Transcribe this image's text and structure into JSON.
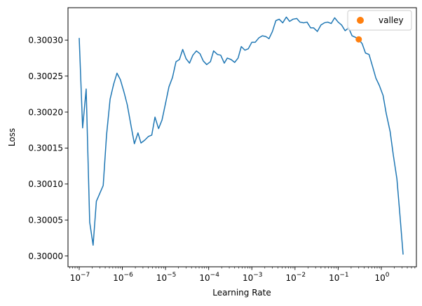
{
  "chart_data": {
    "type": "line",
    "title": "",
    "xlabel": "Learning Rate",
    "ylabel": "Loss",
    "xscale": "log",
    "xlim": [
      5.5e-08,
      6.5
    ],
    "ylim": [
      0.299985,
      0.300345
    ],
    "grid": false,
    "legend": {
      "placement": "top-right",
      "entries": [
        {
          "name": "valley",
          "color": "#ff7f0e",
          "marker": "circle"
        }
      ]
    },
    "x_ticks": [
      {
        "value": 1e-07,
        "label": "10^-7"
      },
      {
        "value": 1e-06,
        "label": "10^-6"
      },
      {
        "value": 1e-05,
        "label": "10^-5"
      },
      {
        "value": 0.0001,
        "label": "10^-4"
      },
      {
        "value": 0.001,
        "label": "10^-3"
      },
      {
        "value": 0.01,
        "label": "10^-2"
      },
      {
        "value": 0.1,
        "label": "10^-1"
      },
      {
        "value": 1,
        "label": "10^0"
      }
    ],
    "y_ticks": [
      {
        "value": 0.3,
        "label": "0.30000"
      },
      {
        "value": 0.30005,
        "label": "0.30005"
      },
      {
        "value": 0.3001,
        "label": "0.30010"
      },
      {
        "value": 0.30015,
        "label": "0.30015"
      },
      {
        "value": 0.3002,
        "label": "0.30020"
      },
      {
        "value": 0.30025,
        "label": "0.30025"
      },
      {
        "value": 0.3003,
        "label": "0.30030"
      }
    ],
    "series": [
      {
        "name": "",
        "color": "#1f77b4",
        "points": [
          [
            1e-07,
            0.300303
          ],
          [
            1.2e-07,
            0.300178
          ],
          [
            1.45e-07,
            0.300232
          ],
          [
            1.75e-07,
            0.300047
          ],
          [
            2.1e-07,
            0.300015
          ],
          [
            2.5e-07,
            0.300076
          ],
          [
            3e-07,
            0.300087
          ],
          [
            3.6e-07,
            0.300098
          ],
          [
            4.3e-07,
            0.300168
          ],
          [
            5.2e-07,
            0.300218
          ],
          [
            6.3e-07,
            0.300239
          ],
          [
            7.5e-07,
            0.300254
          ],
          [
            9e-07,
            0.300245
          ],
          [
            1.1e-06,
            0.300227
          ],
          [
            1.3e-06,
            0.30021
          ],
          [
            1.6e-06,
            0.30018
          ],
          [
            1.9e-06,
            0.300156
          ],
          [
            2.3e-06,
            0.300171
          ],
          [
            2.7e-06,
            0.300157
          ],
          [
            3.3e-06,
            0.300161
          ],
          [
            4e-06,
            0.300166
          ],
          [
            4.8e-06,
            0.300168
          ],
          [
            5.7e-06,
            0.300193
          ],
          [
            6.9e-06,
            0.300177
          ],
          [
            8.3e-06,
            0.300189
          ],
          [
            1e-05,
            0.300212
          ],
          [
            1.2e-05,
            0.300235
          ],
          [
            1.45e-05,
            0.300248
          ],
          [
            1.75e-05,
            0.30027
          ],
          [
            2.1e-05,
            0.300273
          ],
          [
            2.5e-05,
            0.300287
          ],
          [
            3e-05,
            0.300274
          ],
          [
            3.6e-05,
            0.300268
          ],
          [
            4.3e-05,
            0.300279
          ],
          [
            5.2e-05,
            0.300285
          ],
          [
            6.3e-05,
            0.300281
          ],
          [
            7.5e-05,
            0.300271
          ],
          [
            9e-05,
            0.300266
          ],
          [
            0.00011,
            0.30027
          ],
          [
            0.00013,
            0.300285
          ],
          [
            0.00016,
            0.30028
          ],
          [
            0.00019,
            0.300279
          ],
          [
            0.00023,
            0.300268
          ],
          [
            0.00027,
            0.300275
          ],
          [
            0.00033,
            0.300273
          ],
          [
            0.0004,
            0.300269
          ],
          [
            0.00048,
            0.300275
          ],
          [
            0.00057,
            0.300291
          ],
          [
            0.00069,
            0.300286
          ],
          [
            0.00083,
            0.300288
          ],
          [
            0.001,
            0.300297
          ],
          [
            0.0012,
            0.300297
          ],
          [
            0.00145,
            0.300303
          ],
          [
            0.00175,
            0.300306
          ],
          [
            0.0021,
            0.300305
          ],
          [
            0.0025,
            0.300302
          ],
          [
            0.003,
            0.300312
          ],
          [
            0.0036,
            0.300327
          ],
          [
            0.0043,
            0.300329
          ],
          [
            0.0052,
            0.300324
          ],
          [
            0.0063,
            0.300332
          ],
          [
            0.0075,
            0.300326
          ],
          [
            0.009,
            0.300329
          ],
          [
            0.011,
            0.30033
          ],
          [
            0.013,
            0.300325
          ],
          [
            0.016,
            0.300324
          ],
          [
            0.019,
            0.300325
          ],
          [
            0.023,
            0.300317
          ],
          [
            0.027,
            0.300317
          ],
          [
            0.033,
            0.300312
          ],
          [
            0.04,
            0.300321
          ],
          [
            0.048,
            0.300324
          ],
          [
            0.057,
            0.300325
          ],
          [
            0.069,
            0.300323
          ],
          [
            0.083,
            0.300331
          ],
          [
            0.1,
            0.300325
          ],
          [
            0.12,
            0.300321
          ],
          [
            0.145,
            0.300313
          ],
          [
            0.175,
            0.300317
          ],
          [
            0.21,
            0.300306
          ],
          [
            0.25,
            0.300304
          ],
          [
            0.3,
            0.300301
          ],
          [
            0.36,
            0.300295
          ],
          [
            0.43,
            0.300282
          ],
          [
            0.52,
            0.30028
          ],
          [
            0.63,
            0.300263
          ],
          [
            0.75,
            0.300247
          ],
          [
            0.9,
            0.300237
          ],
          [
            1.1,
            0.300223
          ],
          [
            1.3,
            0.300198
          ],
          [
            1.6,
            0.300173
          ],
          [
            1.9,
            0.30014
          ],
          [
            2.3,
            0.300107
          ],
          [
            2.7,
            0.300057
          ],
          [
            3.2,
            0.300002
          ]
        ]
      },
      {
        "name": "valley",
        "color": "#ff7f0e",
        "marker": "circle",
        "points": [
          [
            0.3,
            0.300301
          ]
        ]
      }
    ]
  }
}
